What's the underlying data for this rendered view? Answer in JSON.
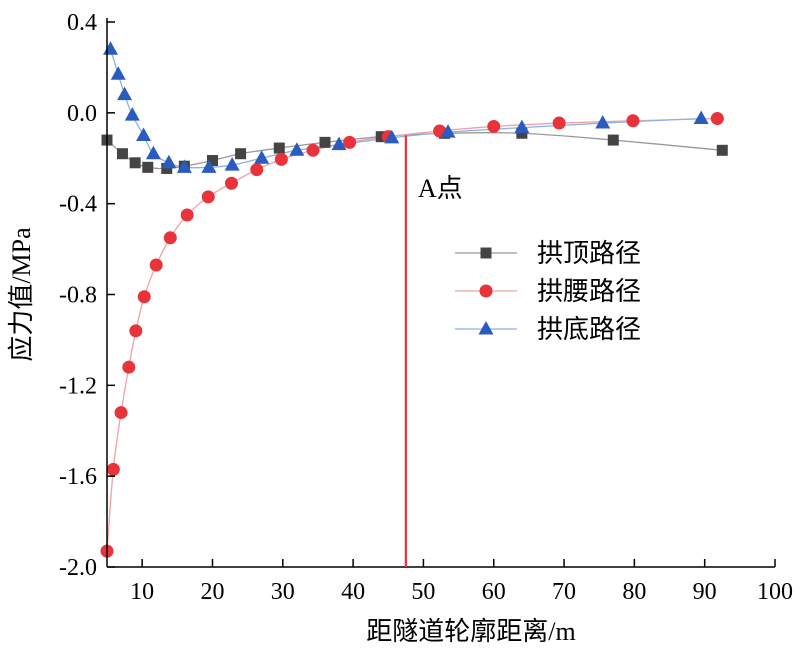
{
  "chart_data": {
    "type": "line",
    "xlabel": "距隧道轮廓距离/m",
    "ylabel": "应力值/MPa",
    "xlim": [
      5,
      100
    ],
    "ylim": [
      -2.0,
      0.4
    ],
    "xticks": [
      10,
      20,
      30,
      40,
      50,
      60,
      70,
      80,
      90,
      100
    ],
    "yticks": [
      -2.0,
      -1.6,
      -1.2,
      -0.8,
      -0.4,
      0.0,
      0.4
    ],
    "xtick_labels": [
      "10",
      "20",
      "30",
      "40",
      "50",
      "60",
      "70",
      "80",
      "90",
      "100"
    ],
    "ytick_labels": [
      "-2.0",
      "-1.6",
      "-1.2",
      "-0.8",
      "-0.4",
      "0.0",
      "0.4"
    ],
    "grid": false,
    "legend_position": "center-right",
    "series": [
      {
        "name": "拱顶路径",
        "marker": "square",
        "color": "#444444",
        "line_color": "#999999",
        "x": [
          5.0,
          7.2,
          9.0,
          10.8,
          13.5,
          16.0,
          20.0,
          24.0,
          29.5,
          36.0,
          44.0,
          53.0,
          64.0,
          77.0,
          92.5
        ],
        "y": [
          -0.12,
          -0.18,
          -0.22,
          -0.24,
          -0.245,
          -0.235,
          -0.21,
          -0.18,
          -0.155,
          -0.13,
          -0.105,
          -0.09,
          -0.09,
          -0.12,
          -0.165
        ]
      },
      {
        "name": "拱腰路径",
        "marker": "circle",
        "color": "#e8333a",
        "line_color": "#f0a0a8",
        "x": [
          5.0,
          5.9,
          7.0,
          8.1,
          9.1,
          10.3,
          12.0,
          14.0,
          16.4,
          19.4,
          22.7,
          26.3,
          29.8,
          34.3,
          39.5,
          45.0,
          52.3,
          60.0,
          69.3,
          79.8,
          91.8
        ],
        "y": [
          -1.93,
          -1.57,
          -1.32,
          -1.12,
          -0.96,
          -0.81,
          -0.67,
          -0.55,
          -0.45,
          -0.37,
          -0.31,
          -0.25,
          -0.205,
          -0.165,
          -0.13,
          -0.105,
          -0.08,
          -0.06,
          -0.045,
          -0.035,
          -0.025
        ]
      },
      {
        "name": "拱底路径",
        "marker": "triangle",
        "color": "#2a5bbf",
        "line_color": "#8fb0e0",
        "x": [
          5.5,
          6.6,
          7.5,
          8.6,
          10.2,
          11.6,
          13.8,
          16.0,
          19.5,
          22.8,
          27.0,
          32.0,
          38.0,
          45.5,
          53.5,
          64.0,
          75.5,
          89.5
        ],
        "y": [
          0.28,
          0.17,
          0.08,
          -0.01,
          -0.1,
          -0.18,
          -0.22,
          -0.24,
          -0.24,
          -0.23,
          -0.2,
          -0.165,
          -0.14,
          -0.11,
          -0.085,
          -0.065,
          -0.045,
          -0.025
        ]
      }
    ],
    "annotations": [
      {
        "text": "A点",
        "x": 47.5,
        "y_from": -2.0,
        "y_to": -0.1,
        "color": "#e8333a"
      }
    ]
  }
}
